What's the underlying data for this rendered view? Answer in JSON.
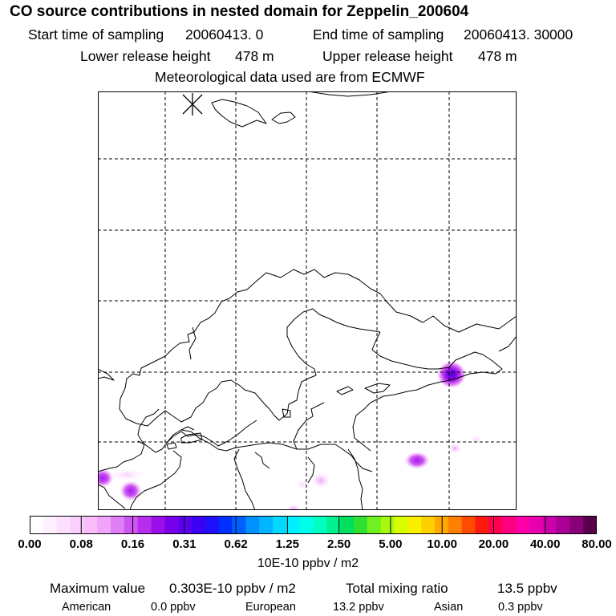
{
  "title": "CO  source contributions in nested domain for Zeppelin_200604",
  "sampling": {
    "start_label": "Start time of sampling",
    "start_value": "20060413.     0",
    "end_label": "End time of sampling",
    "end_value": "20060413. 30000"
  },
  "release": {
    "lower_label": "Lower release height",
    "lower_value": "478 m",
    "upper_label": "Upper release height",
    "upper_value": "478 m"
  },
  "meteo_line": "Meteorological data used are from ECMWF",
  "colorbar": {
    "ticks": [
      "0.00",
      "0.08",
      "0.16",
      "0.31",
      "0.62",
      "1.25",
      "2.50",
      "5.00",
      "10.00",
      "20.00",
      "40.00",
      "80.00"
    ],
    "units": "10E-10 ppbv / m2",
    "colors": [
      "#ffffff",
      "#fef0ff",
      "#fde0fe",
      "#fbcffd",
      "#f9bdfc",
      "#f0a4fa",
      "#e07ef6",
      "#cd55f1",
      "#b62ded",
      "#9b10ea",
      "#7a00ea",
      "#5a00ef",
      "#3a00f4",
      "#1e10fb",
      "#0030ff",
      "#0060ff",
      "#0090ff",
      "#00b4ff",
      "#00d8ff",
      "#00f0ff",
      "#00ffe8",
      "#00ffc0",
      "#00f290",
      "#00e060",
      "#30e030",
      "#70f020",
      "#a8f810",
      "#d8ff00",
      "#f8f000",
      "#ffd000",
      "#ffa800",
      "#ff8000",
      "#ff4a00",
      "#ff1a10",
      "#ff0050",
      "#ff0080",
      "#ff00a8",
      "#e800b0",
      "#cc00aa",
      "#aa0096",
      "#880078",
      "#58004c"
    ]
  },
  "stats": {
    "max_label": "Maximum value",
    "max_value": "0.303E-10 ppbv / m2",
    "total_label": "Total mixing ratio",
    "total_value": "13.5 ppbv"
  },
  "regions": [
    {
      "name": "American",
      "value": "0.0 ppbv"
    },
    {
      "name": "European",
      "value": "13.2 ppbv"
    },
    {
      "name": "Asian",
      "value": "0.3 ppbv"
    }
  ]
}
